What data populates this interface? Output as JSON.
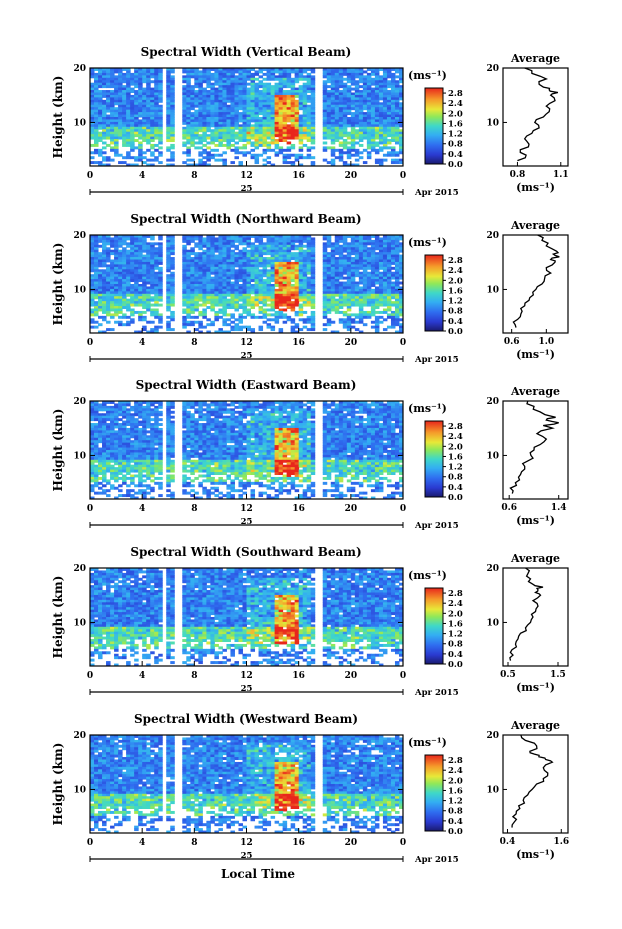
{
  "figure": {
    "ylabel": "Height (km)",
    "xlabel": "Local Time",
    "date_label": "Apr 2015",
    "day_label": "25",
    "avg_title": "Average",
    "unit_label": "(ms⁻¹)",
    "colorbar_ticks": [
      "2.8",
      "2.4",
      "2.0",
      "1.6",
      "1.2",
      "0.8",
      "0.4",
      "0.0"
    ]
  },
  "chart_data": [
    {
      "type": "heatmap",
      "title": "Spectral Width (Vertical Beam)",
      "xlabel": "",
      "ylabel": "Height (km)",
      "xlim": [
        0,
        24
      ],
      "ylim": [
        2,
        20
      ],
      "xticks": [
        "0",
        "4",
        "8",
        "12",
        "16",
        "20",
        "0"
      ],
      "yticks": [
        "10",
        "20"
      ],
      "colorbar_range": [
        0.0,
        3.0
      ],
      "hot_region_local_time": [
        14,
        16
      ]
    },
    {
      "type": "line",
      "title": "Average",
      "xlabel": "(ms⁻¹)",
      "xticks": [
        "0.8",
        "1.1"
      ],
      "xlim": [
        0.7,
        1.15
      ],
      "ylim": [
        2,
        20
      ],
      "yticks": [
        "10",
        "20"
      ],
      "x": [
        0.8,
        0.86,
        0.82,
        0.88,
        0.85,
        0.9,
        0.95,
        0.92,
        0.98,
        1.02,
        1.0,
        1.06,
        1.03,
        1.08,
        1.02,
        0.98,
        0.95,
        1.0,
        0.9,
        0.85
      ],
      "y": [
        3,
        4,
        5,
        6,
        7,
        8,
        9,
        10,
        11,
        12,
        13,
        14,
        15,
        15.5,
        16,
        16.5,
        17,
        18,
        19,
        20
      ]
    },
    {
      "type": "heatmap",
      "title": "Spectral Width (Northward Beam)",
      "xlabel": "",
      "ylabel": "Height (km)",
      "xlim": [
        0,
        24
      ],
      "ylim": [
        2,
        20
      ],
      "xticks": [
        "0",
        "4",
        "8",
        "12",
        "16",
        "20",
        "0"
      ],
      "yticks": [
        "10",
        "20"
      ],
      "colorbar_range": [
        0.0,
        3.0
      ],
      "hot_region_local_time": [
        14,
        16
      ]
    },
    {
      "type": "line",
      "title": "Average",
      "xlabel": "(ms⁻¹)",
      "xticks": [
        "0.6",
        "1.0"
      ],
      "xlim": [
        0.5,
        1.25
      ],
      "ylim": [
        2,
        20
      ],
      "yticks": [
        "10",
        "20"
      ],
      "x": [
        0.65,
        0.62,
        0.7,
        0.72,
        0.75,
        0.8,
        0.85,
        0.88,
        0.95,
        0.98,
        1.05,
        1.0,
        1.1,
        1.05,
        1.15,
        1.08,
        1.12,
        1.0,
        0.95,
        0.9
      ],
      "y": [
        3,
        4,
        5,
        6,
        7,
        8,
        9,
        10,
        11,
        12,
        13,
        14,
        15,
        15.5,
        16,
        16.5,
        17,
        18,
        19,
        20
      ]
    },
    {
      "type": "heatmap",
      "title": "Spectral Width (Eastward Beam)",
      "xlabel": "",
      "ylabel": "Height (km)",
      "xlim": [
        0,
        24
      ],
      "ylim": [
        2,
        20
      ],
      "xticks": [
        "0",
        "4",
        "8",
        "12",
        "16",
        "20",
        "0"
      ],
      "yticks": [
        "10",
        "20"
      ],
      "colorbar_range": [
        0.0,
        3.0
      ],
      "hot_region_local_time": [
        14,
        16
      ]
    },
    {
      "type": "line",
      "title": "Average",
      "xlabel": "(ms⁻¹)",
      "xticks": [
        "0.6",
        "1.4"
      ],
      "xlim": [
        0.5,
        1.55
      ],
      "ylim": [
        2,
        20
      ],
      "yticks": [
        "10",
        "20"
      ],
      "x": [
        0.65,
        0.62,
        0.7,
        0.75,
        0.8,
        0.85,
        0.9,
        0.95,
        1.0,
        1.1,
        1.2,
        1.05,
        1.3,
        1.15,
        1.4,
        1.2,
        1.35,
        1.1,
        1.0,
        0.9
      ],
      "y": [
        3,
        4,
        5,
        6,
        7,
        8,
        9,
        10,
        11,
        12,
        13,
        14,
        15,
        15.5,
        16,
        16.5,
        17,
        18,
        19,
        20
      ]
    },
    {
      "type": "heatmap",
      "title": "Spectral Width (Southward Beam)",
      "xlabel": "",
      "ylabel": "Height (km)",
      "xlim": [
        0,
        24
      ],
      "ylim": [
        2,
        20
      ],
      "xticks": [
        "0",
        "4",
        "8",
        "12",
        "16",
        "20",
        "0"
      ],
      "yticks": [
        "10",
        "20"
      ],
      "colorbar_range": [
        0.0,
        3.0
      ],
      "hot_region_local_time": [
        14,
        16
      ]
    },
    {
      "type": "line",
      "title": "Average",
      "xlabel": "(ms⁻¹)",
      "xticks": [
        "0.5",
        "1.5"
      ],
      "xlim": [
        0.4,
        1.7
      ],
      "ylim": [
        2,
        20
      ],
      "yticks": [
        "10",
        "20"
      ],
      "x": [
        0.55,
        0.6,
        0.58,
        0.65,
        0.7,
        0.75,
        0.85,
        0.95,
        1.0,
        1.05,
        1.1,
        1.0,
        1.15,
        1.05,
        1.1,
        1.2,
        1.0,
        0.95,
        0.9,
        0.85
      ],
      "y": [
        3,
        4,
        5,
        6,
        7,
        8,
        9,
        10,
        11,
        12,
        13,
        14,
        15,
        15.5,
        16,
        16.5,
        17,
        18,
        19,
        20
      ]
    },
    {
      "type": "heatmap",
      "title": "Spectral Width (Westward Beam)",
      "xlabel": "Local Time",
      "ylabel": "Height (km)",
      "xlim": [
        0,
        24
      ],
      "ylim": [
        2,
        20
      ],
      "xticks": [
        "0",
        "4",
        "8",
        "12",
        "16",
        "20",
        "0"
      ],
      "yticks": [
        "10",
        "20"
      ],
      "colorbar_range": [
        0.0,
        3.0
      ],
      "hot_region_local_time": [
        14,
        16
      ]
    },
    {
      "type": "line",
      "title": "Average",
      "xlabel": "(ms⁻¹)",
      "xticks": [
        "0.4",
        "1.6"
      ],
      "xlim": [
        0.3,
        1.75
      ],
      "ylim": [
        2,
        20
      ],
      "yticks": [
        "10",
        "20"
      ],
      "x": [
        0.5,
        0.55,
        0.52,
        0.6,
        0.65,
        0.75,
        0.85,
        0.95,
        1.05,
        1.2,
        1.3,
        1.2,
        1.4,
        1.25,
        1.1,
        1.0,
        0.9,
        1.05,
        0.8,
        0.7
      ],
      "y": [
        3,
        4,
        5,
        6,
        7,
        8,
        9,
        10,
        11,
        12,
        13,
        14,
        15,
        15.5,
        16,
        16.5,
        17,
        18,
        19,
        20
      ]
    }
  ]
}
